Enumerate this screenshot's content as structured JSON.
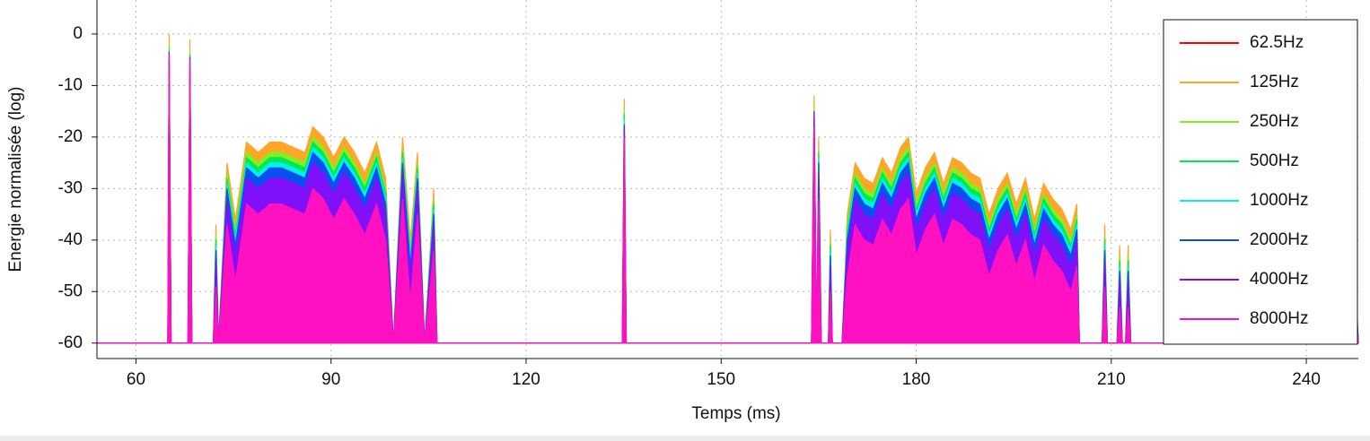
{
  "chart_data": {
    "type": "area",
    "x_label": "Temps (ms)",
    "y_label": "Energie normalisée (log)",
    "xlim": [
      54,
      248
    ],
    "ylim": [
      -63,
      6.6
    ],
    "xticks": [
      60,
      90,
      120,
      150,
      180,
      210,
      240
    ],
    "yticks": [
      0,
      -10,
      -20,
      -30,
      -40,
      -50,
      -60
    ],
    "grid": true,
    "legend": "right",
    "x": [
      54,
      64.9,
      65.1,
      65.4,
      68.0,
      68.3,
      68.6,
      71.9,
      72.3,
      72.7,
      74.0,
      75.3,
      77.0,
      78.8,
      80.6,
      82.4,
      84.2,
      86.0,
      87.2,
      88.8,
      90.4,
      92.0,
      93.6,
      95.2,
      97.0,
      98.4,
      99.6,
      101.0,
      102.2,
      103.3,
      104.4,
      105.8,
      106.3,
      134.8,
      135.1,
      135.4,
      163.9,
      164.3,
      164.7,
      165.0,
      165.4,
      166.5,
      166.8,
      167.1,
      168.6,
      169.4,
      170.6,
      172.0,
      173.4,
      174.8,
      176.2,
      177.6,
      178.8,
      180.0,
      181.4,
      182.8,
      184.2,
      185.6,
      187.0,
      188.4,
      189.8,
      191.2,
      192.6,
      194.0,
      195.4,
      196.8,
      198.2,
      199.6,
      201.0,
      202.4,
      203.8,
      204.7,
      205.1,
      208.6,
      209.0,
      209.4,
      210.9,
      211.3,
      211.7,
      212.2,
      212.6,
      213.0,
      247.0,
      247.4,
      248
    ],
    "series": [
      {
        "name": "62.5Hz",
        "color": "#ff0000",
        "values": [
          -60,
          -60,
          -60,
          -60,
          -60,
          -60,
          -60,
          -60,
          -60,
          -60,
          -60,
          -60,
          -60,
          -60,
          -60,
          -60,
          -60,
          -60,
          -60,
          -60,
          -60,
          -60,
          -60,
          -60,
          -60,
          -60,
          -60,
          -60,
          -60,
          -60,
          -60,
          -60,
          -60,
          -60,
          -60,
          -60,
          -60,
          -60,
          -60,
          -60,
          -60,
          -60,
          -60,
          -60,
          -60,
          -60,
          -60,
          -60,
          -60,
          -60,
          -60,
          -60,
          -60,
          -60,
          -60,
          -60,
          -60,
          -60,
          -60,
          -60,
          -60,
          -60,
          -60,
          -60,
          -60,
          -60,
          -60,
          -60,
          -60,
          -60,
          -60,
          -60,
          -60,
          -60,
          -60,
          -60,
          -60,
          -60,
          -60,
          -60,
          -60,
          -60,
          -60,
          -60,
          -60
        ]
      },
      {
        "name": "125Hz",
        "color": "#ffa628",
        "values": [
          -60,
          -60,
          0,
          -60,
          -60,
          -1,
          -60,
          -60,
          -37,
          -60,
          -25,
          -36,
          -21,
          -23,
          -21,
          -21,
          -22,
          -23,
          -18,
          -20,
          -24,
          -20,
          -23,
          -27,
          -21,
          -28,
          -60,
          -20,
          -40,
          -23,
          -60,
          -30,
          -60,
          -60,
          -12.5,
          -60,
          -60,
          -12,
          -60,
          -20,
          -60,
          -60,
          -38,
          -60,
          -60,
          -35,
          -25,
          -28,
          -29,
          -24,
          -27,
          -22,
          -20,
          -31,
          -26,
          -23,
          -29,
          -24,
          -25,
          -27,
          -28,
          -35,
          -30,
          -27,
          -33,
          -28,
          -36,
          -29,
          -32,
          -34,
          -38,
          -33,
          -60,
          -60,
          -37,
          -60,
          -60,
          -41,
          -60,
          -60,
          -41,
          -60,
          -60,
          -40,
          -60
        ]
      },
      {
        "name": "250Hz",
        "color": "#80f020",
        "values": [
          -60,
          -60,
          -2,
          -60,
          -60,
          -3,
          -60,
          -60,
          -39,
          -60,
          -27,
          -38,
          -23,
          -25,
          -23,
          -23,
          -24,
          -25,
          -20,
          -22,
          -26,
          -22,
          -25,
          -29,
          -23,
          -30,
          -60,
          -22,
          -42,
          -25,
          -60,
          -32,
          -60,
          -60,
          -14.5,
          -60,
          -60,
          -14,
          -60,
          -22,
          -60,
          -60,
          -40,
          -60,
          -60,
          -37,
          -27,
          -30,
          -31,
          -26,
          -29,
          -24,
          -22,
          -33,
          -28,
          -25,
          -31,
          -26,
          -27,
          -29,
          -30,
          -37,
          -32,
          -29,
          -35,
          -30,
          -38,
          -31,
          -34,
          -36,
          -40,
          -35,
          -60,
          -60,
          -39,
          -60,
          -60,
          -43,
          -60,
          -60,
          -43,
          -60,
          -60,
          -42,
          -60
        ]
      },
      {
        "name": "500Hz",
        "color": "#00e850",
        "values": [
          -60,
          -60,
          -3,
          -60,
          -60,
          -4,
          -60,
          -60,
          -40,
          -60,
          -28,
          -39,
          -24,
          -26,
          -24,
          -24,
          -25,
          -26,
          -21,
          -23,
          -27,
          -23,
          -26,
          -30,
          -24,
          -31,
          -60,
          -23,
          -43,
          -26,
          -60,
          -33,
          -60,
          -60,
          -15.5,
          -60,
          -60,
          -15,
          -60,
          -23,
          -60,
          -60,
          -41,
          -60,
          -60,
          -38,
          -28,
          -31,
          -32,
          -27,
          -30,
          -25,
          -23,
          -34,
          -29,
          -26,
          -32,
          -27,
          -28,
          -30,
          -31,
          -38,
          -33,
          -30,
          -36,
          -31,
          -39,
          -32,
          -35,
          -37,
          -41,
          -36,
          -60,
          -60,
          -40,
          -60,
          -60,
          -44,
          -60,
          -60,
          -44,
          -60,
          -60,
          -43,
          -60
        ]
      },
      {
        "name": "1000Hz",
        "color": "#00f0f0",
        "values": [
          -60,
          -60,
          -4,
          -60,
          -60,
          -5,
          -60,
          -60,
          -41,
          -60,
          -29,
          -40,
          -25,
          -27,
          -25,
          -25,
          -26,
          -27,
          -22,
          -24,
          -28,
          -24,
          -27,
          -31,
          -25,
          -32,
          -60,
          -24,
          -44,
          -27,
          -60,
          -34,
          -60,
          -60,
          -16.5,
          -60,
          -60,
          -16,
          -60,
          -24,
          -60,
          -60,
          -42,
          -60,
          -60,
          -39,
          -29,
          -32,
          -33,
          -28,
          -31,
          -26,
          -24,
          -35,
          -30,
          -27,
          -33,
          -28,
          -29,
          -31,
          -32,
          -39,
          -34,
          -31,
          -37,
          -32,
          -40,
          -33,
          -36,
          -38,
          -42,
          -37,
          -60,
          -60,
          -41,
          -60,
          -60,
          -45,
          -60,
          -60,
          -45,
          -60,
          -60,
          -44,
          -60
        ]
      },
      {
        "name": "2000Hz",
        "color": "#0a50f0",
        "values": [
          -60,
          -60,
          -5,
          -60,
          -60,
          -6,
          -60,
          -60,
          -42,
          -60,
          -30,
          -41,
          -26,
          -28,
          -26,
          -26,
          -27,
          -28,
          -23,
          -25,
          -29,
          -25,
          -28,
          -32,
          -26,
          -33,
          -60,
          -25,
          -45,
          -28,
          -60,
          -35,
          -60,
          -60,
          -17.5,
          -60,
          -60,
          -17,
          -60,
          -25,
          -60,
          -60,
          -43,
          -60,
          -60,
          -40,
          -30,
          -33,
          -34,
          -29,
          -32,
          -27,
          -25,
          -36,
          -31,
          -28,
          -34,
          -29,
          -30,
          -32,
          -33,
          -40,
          -35,
          -32,
          -38,
          -33,
          -41,
          -34,
          -37,
          -39,
          -43,
          -38,
          -60,
          -60,
          -42,
          -60,
          -60,
          -46,
          -60,
          -60,
          -46,
          -60,
          -60,
          -45,
          -60
        ]
      },
      {
        "name": "4000Hz",
        "color": "#8010f8",
        "values": [
          -60,
          -60,
          -3.5,
          -60,
          -60,
          -4.5,
          -60,
          -60,
          -44,
          -60,
          -32,
          -43,
          -28,
          -30,
          -28,
          -28,
          -29,
          -30,
          -25,
          -27,
          -31,
          -27,
          -30,
          -34,
          -28,
          -35,
          -60,
          -27,
          -47,
          -30,
          -60,
          -37,
          -60,
          -60,
          -18,
          -60,
          -60,
          -15,
          -60,
          -27,
          -60,
          -60,
          -45,
          -60,
          -60,
          -42,
          -32,
          -35,
          -36,
          -31,
          -34,
          -29,
          -27,
          -38,
          -33,
          -30,
          -36,
          -31,
          -32,
          -34,
          -35,
          -42,
          -37,
          -34,
          -40,
          -35,
          -43,
          -36,
          -39,
          -41,
          -45,
          -40,
          -60,
          -60,
          -44,
          -60,
          -60,
          -48,
          -60,
          -60,
          -48,
          -60,
          -60,
          -47,
          -60
        ]
      },
      {
        "name": "8000Hz",
        "color": "#ff10c0",
        "values": [
          -60,
          -60,
          -4,
          -60,
          -60,
          -5,
          -60,
          -60,
          -49,
          -60,
          -37,
          -48,
          -33,
          -35,
          -33,
          -33,
          -34,
          -35,
          -30,
          -32,
          -36,
          -32,
          -35,
          -39,
          -33,
          -40,
          -60,
          -32,
          -52,
          -35,
          -60,
          -42,
          -60,
          -60,
          -20,
          -60,
          -60,
          -18,
          -60,
          -32,
          -60,
          -60,
          -50,
          -60,
          -60,
          -47,
          -37,
          -40,
          -41,
          -36,
          -39,
          -34,
          -32,
          -43,
          -38,
          -35,
          -41,
          -36,
          -37,
          -39,
          -40,
          -47,
          -42,
          -39,
          -45,
          -40,
          -48,
          -41,
          -44,
          -46,
          -50,
          -45,
          -60,
          -60,
          -49,
          -60,
          -60,
          -53,
          -60,
          -60,
          -53,
          -60,
          -60,
          -52,
          -60
        ]
      }
    ]
  }
}
